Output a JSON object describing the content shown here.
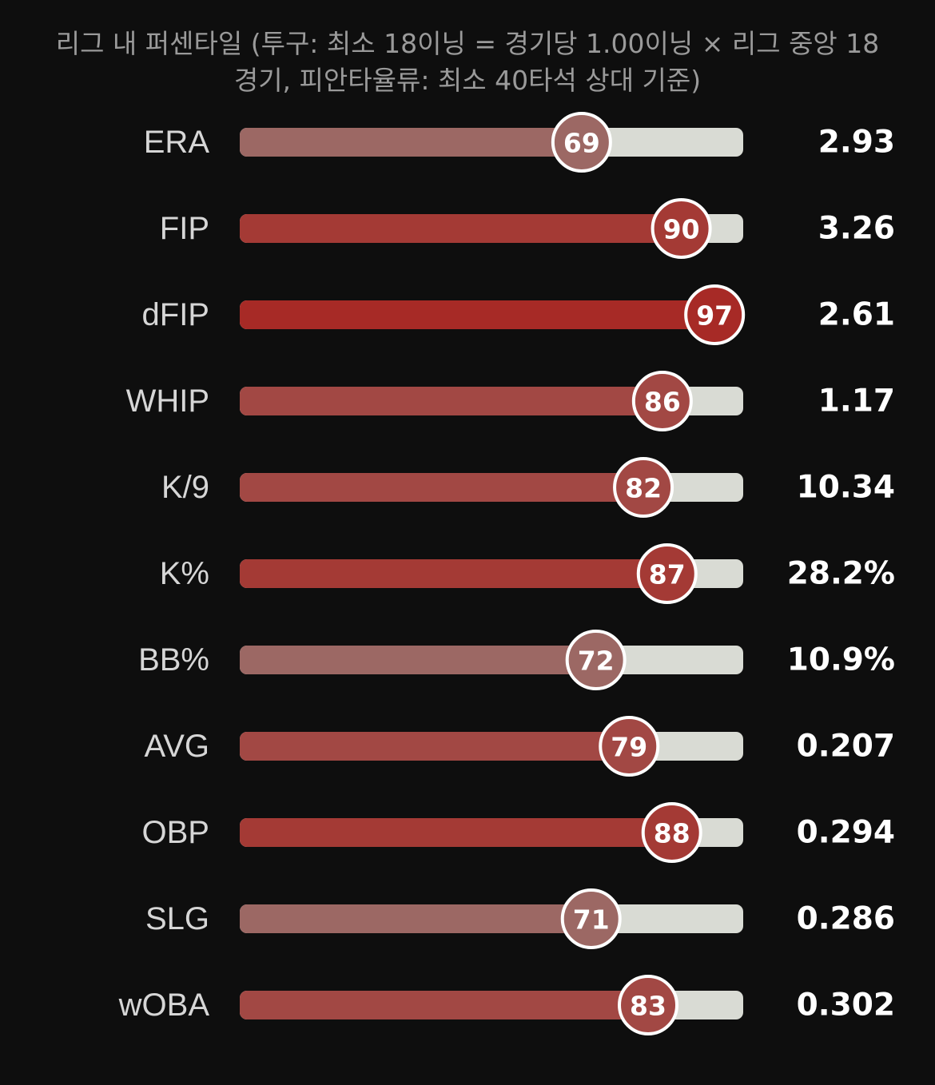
{
  "subtitle": {
    "line1": "리그 내 퍼센타일 (투구: 최소 18이닝 = 경기당 1.00이닝 × 리그 중앙 18",
    "line2": "경기, 피안타율류: 최소 40타석 상대 기준)"
  },
  "colors": {
    "background": "#0e0e0e",
    "track": "#d9dbd4",
    "bubble_border": "#ffffff",
    "low_fill": "#9c6864",
    "mid_fill": "#a24844",
    "high_fill": "#a43a35",
    "top_fill": "#a72a26"
  },
  "chart_data": {
    "type": "bar",
    "orientation": "horizontal",
    "xlim": [
      0,
      100
    ],
    "metrics": [
      "ERA",
      "FIP",
      "dFIP",
      "WHIP",
      "K/9",
      "K%",
      "BB%",
      "AVG",
      "OBP",
      "SLG",
      "wOBA"
    ],
    "percentiles": [
      69,
      90,
      97,
      86,
      82,
      87,
      72,
      79,
      88,
      71,
      83
    ],
    "values": [
      "2.93",
      "3.26",
      "2.61",
      "1.17",
      "10.34",
      "28.2%",
      "10.9%",
      "0.207",
      "0.294",
      "0.286",
      "0.302"
    ]
  }
}
